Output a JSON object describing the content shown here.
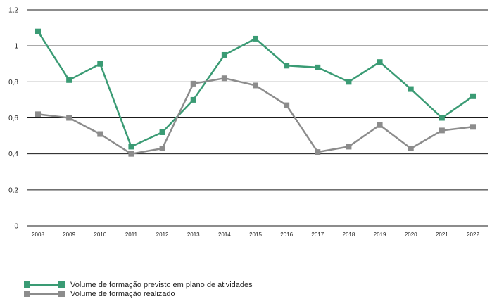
{
  "chart_data": {
    "type": "line",
    "x": [
      "2008",
      "2009",
      "2010",
      "2011",
      "2012",
      "2013",
      "2014",
      "2015",
      "2016",
      "2017",
      "2018",
      "2019",
      "2020",
      "2021",
      "2022"
    ],
    "series": [
      {
        "name": "Volume de formação previsto em plano de atividades",
        "color": "#3a9b74",
        "values": [
          1.08,
          0.81,
          0.9,
          0.44,
          0.52,
          0.7,
          0.95,
          1.04,
          0.89,
          0.88,
          0.8,
          0.91,
          0.76,
          0.6,
          0.72
        ]
      },
      {
        "name": "Volume de formação realizado",
        "color": "#8c8c8c",
        "values": [
          0.62,
          0.6,
          0.51,
          0.4,
          0.43,
          0.79,
          0.82,
          0.78,
          0.67,
          0.41,
          0.44,
          0.56,
          0.43,
          0.53,
          0.55
        ]
      }
    ],
    "ylim": [
      0,
      1.2
    ],
    "yticks": [
      "0",
      "0,2",
      "0,4",
      "0,6",
      "0,8",
      "1",
      "1,2"
    ],
    "grid": true,
    "legend_position": "bottom-left",
    "title": "",
    "xlabel": "",
    "ylabel": ""
  }
}
